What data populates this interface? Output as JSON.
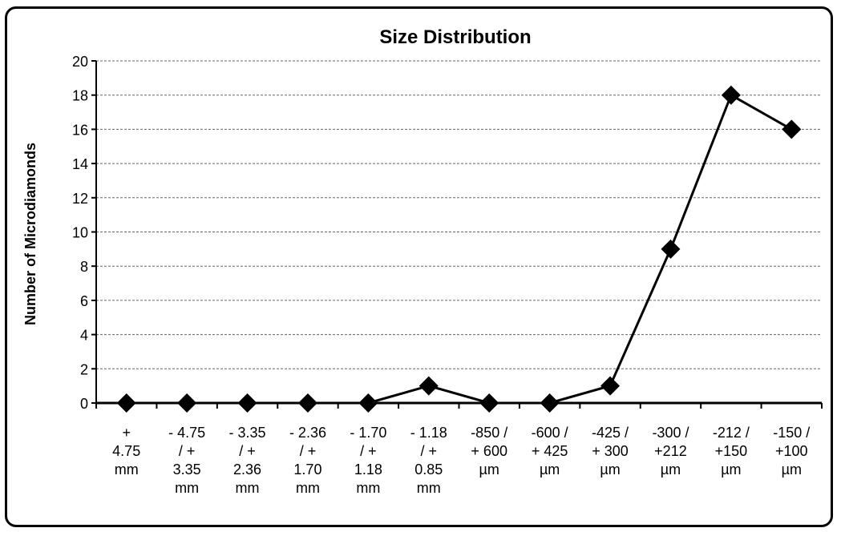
{
  "chart_data": {
    "type": "line",
    "title": "Size Distribution",
    "xlabel": "",
    "ylabel": "Number of Microdiamonds",
    "ylim": [
      0,
      20
    ],
    "yticks": [
      0,
      2,
      4,
      6,
      8,
      10,
      12,
      14,
      16,
      18,
      20
    ],
    "grid": true,
    "legend": "none",
    "marker": "diamond",
    "line_color": "#000000",
    "categories": [
      [
        "+",
        "4.75",
        "mm"
      ],
      [
        "- 4.75",
        "/ +",
        "3.35",
        "mm"
      ],
      [
        "- 3.35",
        "/ +",
        "2.36",
        "mm"
      ],
      [
        "- 2.36",
        "/ +",
        "1.70",
        "mm"
      ],
      [
        "- 1.70",
        "/ +",
        "1.18",
        "mm"
      ],
      [
        "- 1.18",
        "/ +",
        "0.85",
        "mm"
      ],
      [
        "-850 /",
        "+ 600",
        "µm"
      ],
      [
        "-600 /",
        "+ 425",
        "µm"
      ],
      [
        "-425 /",
        "+ 300",
        "µm"
      ],
      [
        "-300 /",
        "+212",
        "µm"
      ],
      [
        "-212 /",
        "+150",
        "µm"
      ],
      [
        "-150 /",
        "+100",
        "µm"
      ]
    ],
    "values": [
      0,
      0,
      0,
      0,
      0,
      1,
      0,
      0,
      1,
      9,
      18,
      16
    ]
  }
}
